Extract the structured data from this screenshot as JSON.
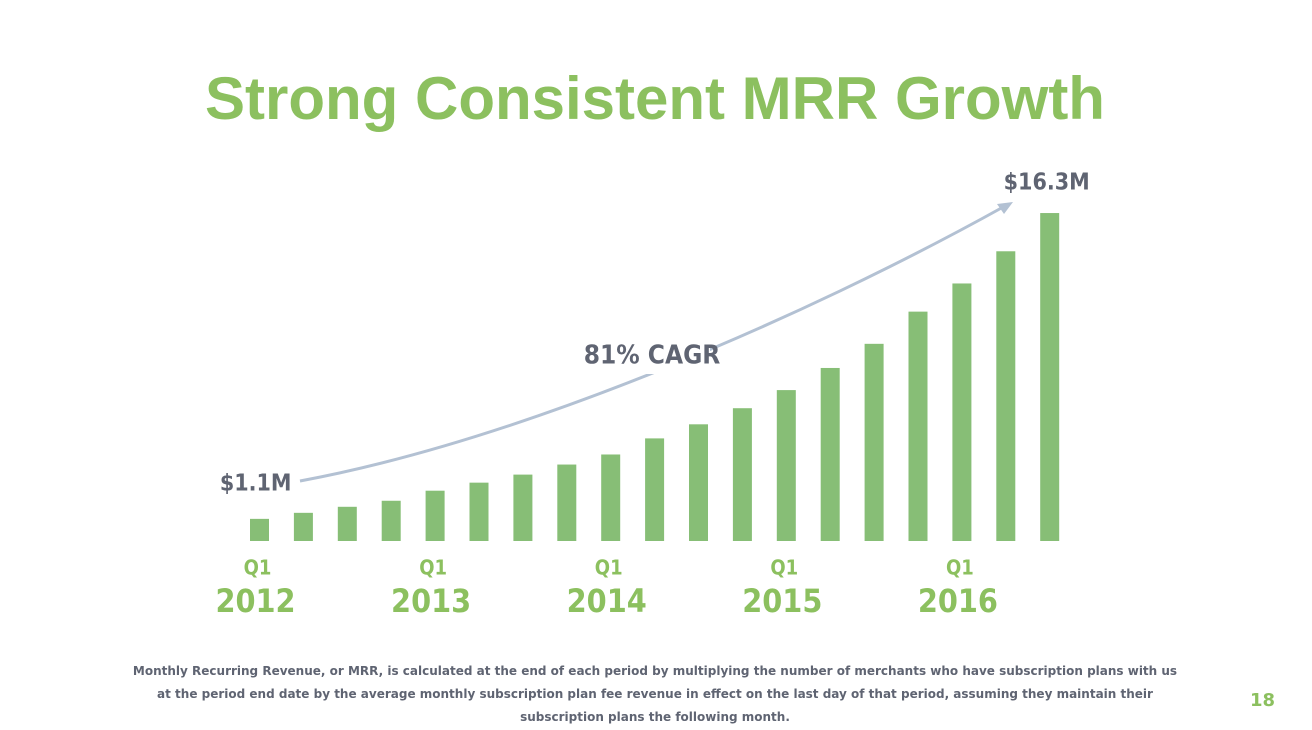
{
  "chart_data": {
    "type": "bar",
    "title": "Strong Consistent MRR Growth",
    "annotation": "81% CAGR",
    "quarters": [
      "Q1",
      null,
      null,
      null,
      "Q1",
      null,
      null,
      null,
      "Q1",
      null,
      null,
      null,
      "Q1",
      null,
      null,
      null,
      "Q1",
      null,
      null
    ],
    "years": [
      "2012",
      null,
      null,
      null,
      "2013",
      null,
      null,
      null,
      "2014",
      null,
      null,
      null,
      "2015",
      null,
      null,
      null,
      "2016",
      null,
      null
    ],
    "values": [
      1.1,
      1.4,
      1.7,
      2.0,
      2.5,
      2.9,
      3.3,
      3.8,
      4.3,
      5.1,
      5.8,
      6.6,
      7.5,
      8.6,
      9.8,
      11.4,
      12.8,
      14.4,
      16.3
    ],
    "value_labels": [
      "$1.1M",
      null,
      null,
      null,
      null,
      null,
      null,
      null,
      null,
      null,
      null,
      null,
      null,
      null,
      null,
      null,
      null,
      null,
      "$16.3M"
    ],
    "color": "#87be76"
  },
  "footnote": "Monthly Recurring Revenue, or MRR, is calculated at the end of each period by multiplying the number of merchants who have subscription plans with us at the period end date by the average monthly subscription plan fee revenue in effect on the last day of that period, assuming they maintain their subscription plans the following month.",
  "page_number": "18"
}
